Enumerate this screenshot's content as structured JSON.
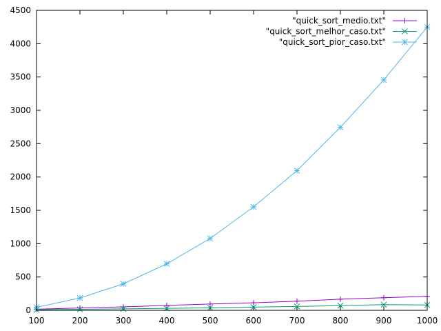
{
  "chart_data": {
    "type": "line",
    "title": "",
    "xlabel": "",
    "ylabel": "",
    "xlim": [
      100,
      1000
    ],
    "ylim": [
      0,
      4500
    ],
    "x_ticks": [
      "100",
      "200",
      "300",
      "400",
      "500",
      "600",
      "700",
      "800",
      "900",
      "1000"
    ],
    "y_ticks": [
      "0",
      "500",
      "1000",
      "1500",
      "2000",
      "2500",
      "3000",
      "3500",
      "4000",
      "4500"
    ],
    "grid": false,
    "legend_position": "top-right",
    "x": [
      100,
      200,
      300,
      400,
      500,
      600,
      700,
      800,
      900,
      1000
    ],
    "series": [
      {
        "name": "\"quick_sort_medio.txt\"",
        "color": "#9400d3",
        "marker": "plus",
        "values": [
          17,
          35,
          52,
          74,
          94,
          112,
          137,
          167,
          189,
          209
        ]
      },
      {
        "name": "\"quick_sort_melhor_caso.txt\"",
        "color": "#009e73",
        "marker": "x",
        "values": [
          7,
          15,
          22,
          30,
          37,
          48,
          58,
          70,
          85,
          80
        ]
      },
      {
        "name": "\"quick_sort_pior_caso.txt\"",
        "color": "#56b4e9",
        "marker": "star",
        "values": [
          45,
          185,
          397,
          697,
          1078,
          1552,
          2095,
          2745,
          3457,
          4250
        ]
      }
    ]
  }
}
